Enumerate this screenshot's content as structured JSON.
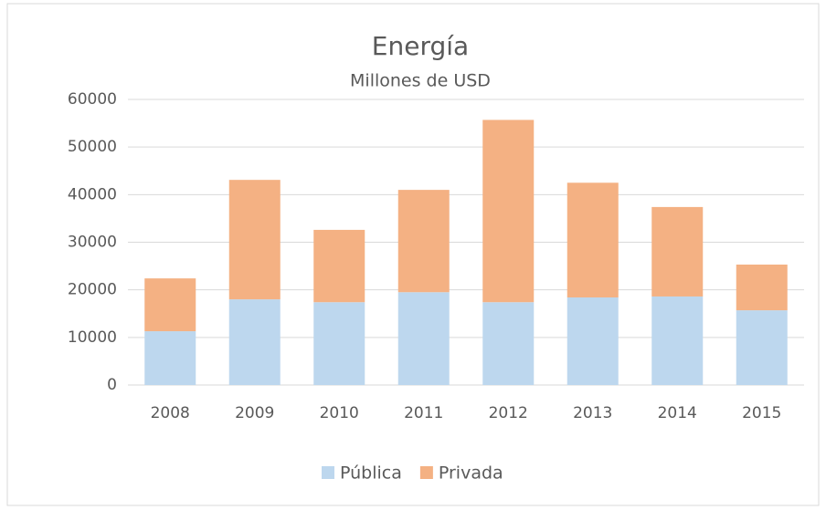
{
  "chart_data": {
    "type": "stacked_bar",
    "title": "Energía",
    "subtitle": "Millones de USD",
    "categories": [
      "2008",
      "2009",
      "2010",
      "2011",
      "2012",
      "2013",
      "2014",
      "2015"
    ],
    "series": [
      {
        "name": "Pública",
        "color": "#bdd7ee",
        "values": [
          11300,
          18000,
          17400,
          19500,
          17400,
          18400,
          18600,
          15700
        ]
      },
      {
        "name": "Privada",
        "color": "#f4b183",
        "values": [
          11100,
          25100,
          15200,
          21500,
          38300,
          24100,
          18800,
          9600
        ]
      }
    ],
    "ylim": [
      0,
      60000
    ],
    "yticks": [
      0,
      10000,
      20000,
      30000,
      40000,
      50000,
      60000
    ],
    "grid": true,
    "legend": "bottom"
  }
}
